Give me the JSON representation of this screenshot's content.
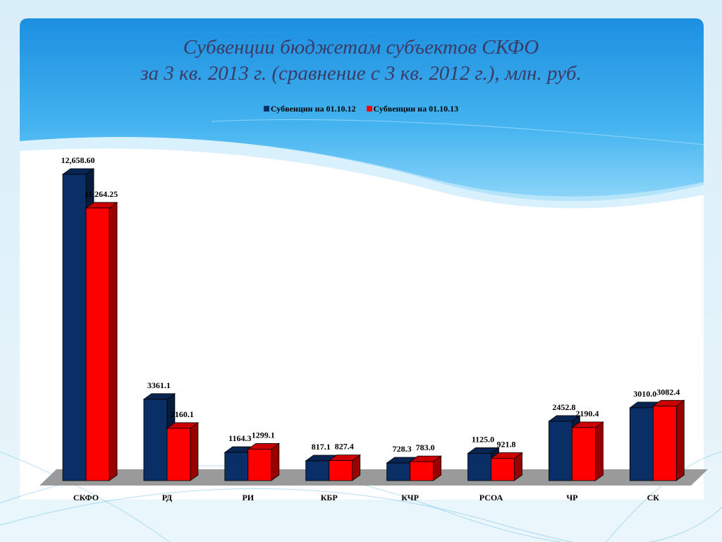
{
  "slide": {
    "title_line_1": "Субвенции бюджетам субъектов СКФО",
    "title_line_2": "за 3 кв. 2013 г. (сравнение с 3 кв. 2012 г.), млн. руб."
  },
  "colors": {
    "series_1": "#0a2e66",
    "series_2": "#ff0000",
    "floor": "#9a9a9a",
    "background_sky": "#2d9ee8"
  },
  "chart_data": {
    "type": "bar",
    "style": "3d-clustered-column",
    "categories": [
      "СКФО",
      "РД",
      "РИ",
      "КБР",
      "КЧР",
      "РСОА",
      "ЧР",
      "СК"
    ],
    "series": [
      {
        "name": "Субвенции на 01.10.12",
        "values": [
          12658.6,
          3361.1,
          1164.3,
          817.1,
          728.3,
          1125.0,
          2452.8,
          3010.0
        ],
        "labels": [
          "12,658.60",
          "3361.1",
          "1164.3",
          "817.1",
          "728.3",
          "1125.0",
          "2452.8",
          "3010.0"
        ]
      },
      {
        "name": "Субвенции на 01.10.13",
        "values": [
          11264.25,
          2160.1,
          1299.1,
          827.4,
          783.0,
          921.8,
          2190.4,
          3082.4
        ],
        "labels": [
          "11,264.25",
          "2160.1",
          "1299.1",
          "827.4",
          "783.0",
          "921.8",
          "2190.4",
          "3082.4"
        ]
      }
    ],
    "legend_position": "top",
    "gridlines": false,
    "ylim": [
      0,
      13000
    ]
  }
}
